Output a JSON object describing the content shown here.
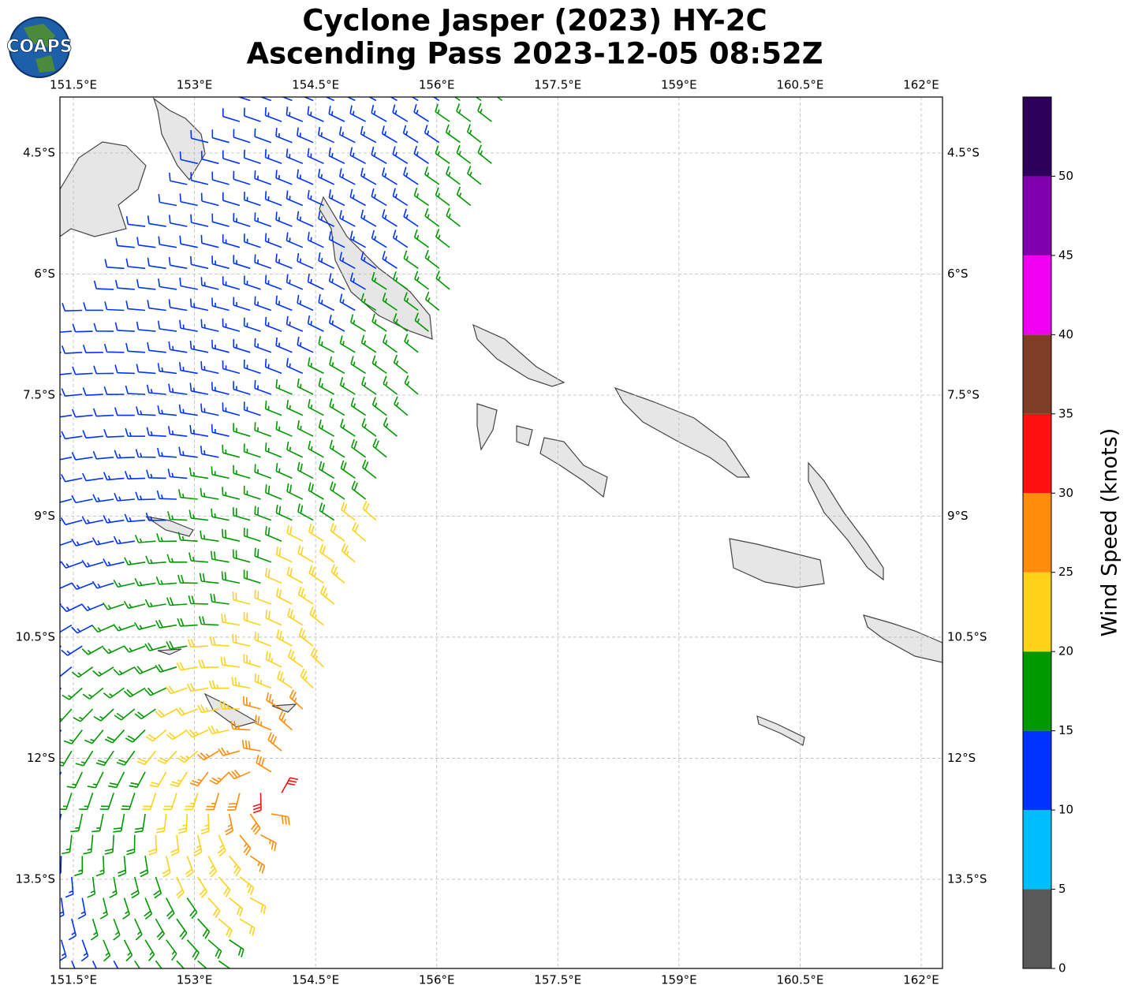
{
  "chart_data": {
    "type": "wind-barb-map",
    "title": "Cyclone Jasper (2023) HY-2C",
    "subtitle": "Ascending Pass 2023-12-05 08:52Z",
    "logo": "COAPS",
    "xlim": [
      151.334,
      162.264
    ],
    "ylim": [
      -14.605,
      -3.806
    ],
    "xticks": [
      {
        "value": 151.5,
        "label": "151.5°E"
      },
      {
        "value": 153,
        "label": "153°E"
      },
      {
        "value": 154.5,
        "label": "154.5°E"
      },
      {
        "value": 156,
        "label": "156°E"
      },
      {
        "value": 157.5,
        "label": "157.5°E"
      },
      {
        "value": 159,
        "label": "159°E"
      },
      {
        "value": 160.5,
        "label": "160.5°E"
      },
      {
        "value": 162,
        "label": "162°E"
      }
    ],
    "yticks": [
      {
        "value": -4.5,
        "label": "4.5°S"
      },
      {
        "value": -6,
        "label": "6°S"
      },
      {
        "value": -7.5,
        "label": "7.5°S"
      },
      {
        "value": -9,
        "label": "9°S"
      },
      {
        "value": -10.5,
        "label": "10.5°S"
      },
      {
        "value": -12,
        "label": "12°S"
      },
      {
        "value": -13.5,
        "label": "13.5°S"
      }
    ],
    "grid": true,
    "colorbar": {
      "label": "Wind Speed (knots)",
      "lim": [
        0,
        55
      ],
      "bounds": [
        0,
        5,
        10,
        15,
        20,
        25,
        30,
        35,
        40,
        45,
        50,
        55
      ],
      "colors": [
        "#595959",
        "#00bfff",
        "#0033ff",
        "#009900",
        "#ffd21a",
        "#ff8c0a",
        "#ff1010",
        "#803d26",
        "#f000f0",
        "#8000b0",
        "#2d0059"
      ],
      "ticks": [
        0,
        5,
        10,
        15,
        20,
        25,
        30,
        35,
        40,
        45,
        50
      ]
    }
  }
}
